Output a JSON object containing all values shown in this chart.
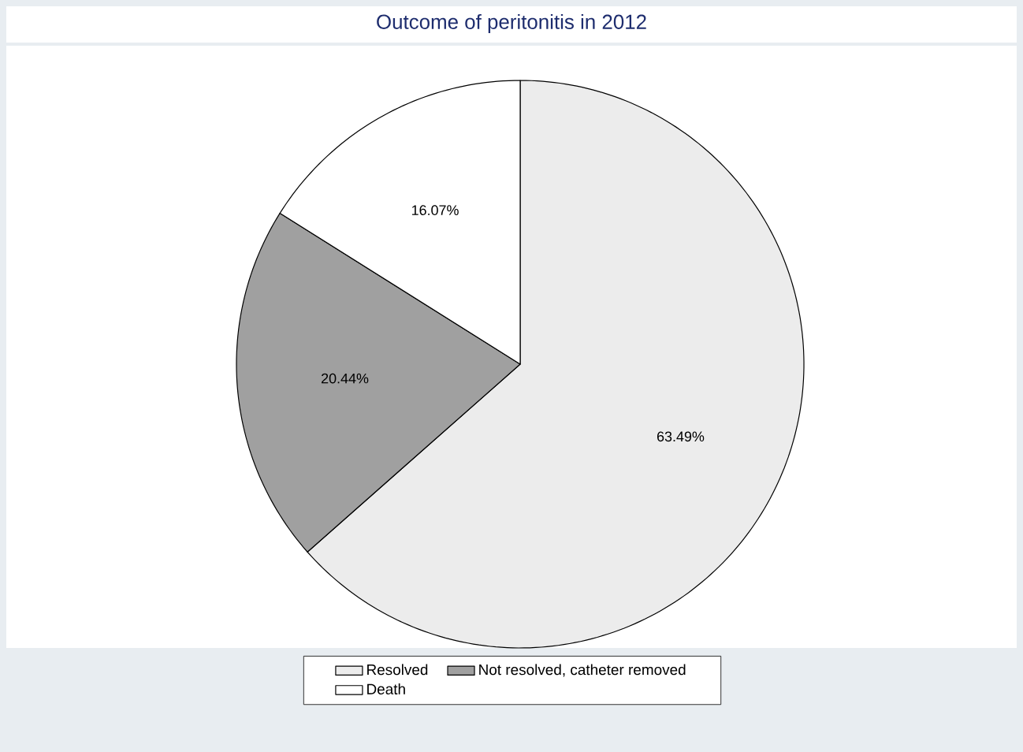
{
  "chart_data": {
    "type": "pie",
    "title": "Outcome of peritonitis in 2012",
    "categories": [
      "Resolved",
      "Not resolved, catheter removed",
      "Death"
    ],
    "values": [
      63.49,
      20.44,
      16.07
    ],
    "colors": [
      "#ececec",
      "#a0a0a0",
      "#ffffff"
    ],
    "value_labels": [
      "63.49%",
      "20.44%",
      "16.07%"
    ],
    "legend": "bottom"
  }
}
